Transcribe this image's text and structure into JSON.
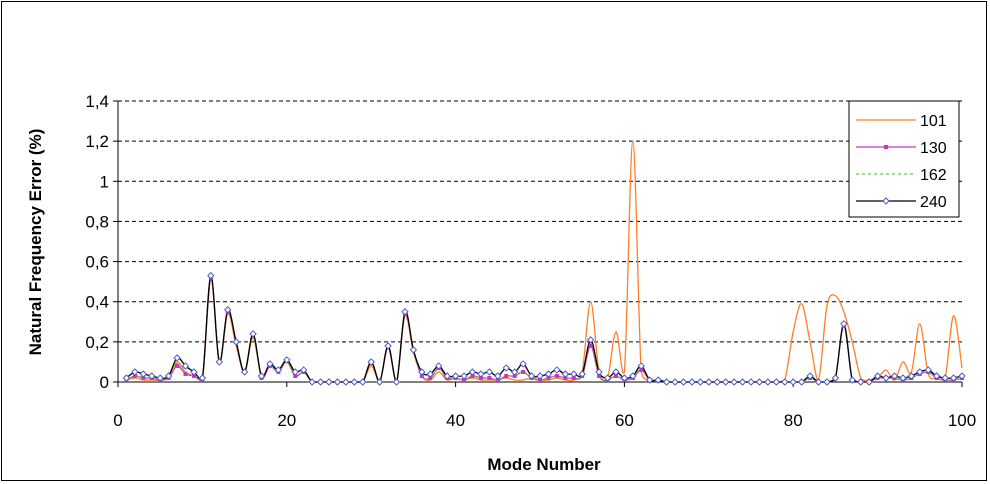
{
  "chart_data": {
    "type": "line",
    "title": "",
    "xlabel": "Mode Number",
    "ylabel": "Natural Frequency Error (%)",
    "xlim": [
      0,
      100
    ],
    "ylim": [
      0,
      1.4
    ],
    "x_ticks": [
      {
        "value": 0,
        "label": "0"
      },
      {
        "value": 20,
        "label": "20"
      },
      {
        "value": 40,
        "label": "40"
      },
      {
        "value": 60,
        "label": "60"
      },
      {
        "value": 80,
        "label": "80"
      },
      {
        "value": 100,
        "label": "100"
      }
    ],
    "y_ticks": [
      {
        "value": 0,
        "label": "0"
      },
      {
        "value": 0.2,
        "label": "0,2"
      },
      {
        "value": 0.4,
        "label": "0,4"
      },
      {
        "value": 0.6,
        "label": "0,6"
      },
      {
        "value": 0.8,
        "label": "0,8"
      },
      {
        "value": 1.0,
        "label": "1"
      },
      {
        "value": 1.2,
        "label": "1,2"
      },
      {
        "value": 1.4,
        "label": "1,4"
      }
    ],
    "grid": "horizontal-dashed",
    "legend_position": "top-right",
    "x": [
      1,
      2,
      3,
      4,
      5,
      6,
      7,
      8,
      9,
      10,
      11,
      12,
      13,
      14,
      15,
      16,
      17,
      18,
      19,
      20,
      21,
      22,
      23,
      24,
      25,
      26,
      27,
      28,
      29,
      30,
      31,
      32,
      33,
      34,
      35,
      36,
      37,
      38,
      39,
      40,
      41,
      42,
      43,
      44,
      45,
      46,
      47,
      48,
      49,
      50,
      51,
      52,
      53,
      54,
      55,
      56,
      57,
      58,
      59,
      60,
      61,
      62,
      63,
      64,
      65,
      66,
      67,
      68,
      69,
      70,
      71,
      72,
      73,
      74,
      75,
      76,
      77,
      78,
      79,
      80,
      81,
      82,
      83,
      84,
      85,
      86,
      87,
      88,
      89,
      90,
      91,
      92,
      93,
      94,
      95,
      96,
      97,
      98,
      99,
      100
    ],
    "series": [
      {
        "name": "101",
        "color": "#ff7f27",
        "marker": "none",
        "dash": "solid",
        "values": [
          0.01,
          0.02,
          0.01,
          0.01,
          0.01,
          0.03,
          0.1,
          0.05,
          0.03,
          0.01,
          0.52,
          0.1,
          0.34,
          0.18,
          0.05,
          0.22,
          0.03,
          0.09,
          0.05,
          0.1,
          0.03,
          0.05,
          0.0,
          0.0,
          0.0,
          0.0,
          0.0,
          0.0,
          0.0,
          0.08,
          0.0,
          0.17,
          0.0,
          0.33,
          0.15,
          0.03,
          0.01,
          0.05,
          0.01,
          0.02,
          0.01,
          0.02,
          0.01,
          0.01,
          0.01,
          0.02,
          0.01,
          0.01,
          0.02,
          0.01,
          0.01,
          0.02,
          0.01,
          0.01,
          0.05,
          0.4,
          0.05,
          0.02,
          0.25,
          0.05,
          1.2,
          0.05,
          0.01,
          0.01,
          0.0,
          0.0,
          0.0,
          0.0,
          0.0,
          0.0,
          0.0,
          0.0,
          0.0,
          0.0,
          0.0,
          0.0,
          0.0,
          0.0,
          0.01,
          0.25,
          0.39,
          0.2,
          0.01,
          0.38,
          0.43,
          0.35,
          0.2,
          0.02,
          0.01,
          0.02,
          0.06,
          0.01,
          0.1,
          0.05,
          0.29,
          0.04,
          0.02,
          0.02,
          0.33,
          0.07
        ]
      },
      {
        "name": "130",
        "color": "#cc33cc",
        "marker": "square",
        "dash": "solid",
        "values": [
          0.01,
          0.03,
          0.02,
          0.02,
          0.01,
          0.02,
          0.08,
          0.04,
          0.03,
          0.01,
          0.52,
          0.1,
          0.35,
          0.2,
          0.05,
          0.24,
          0.02,
          0.08,
          0.05,
          0.11,
          0.03,
          0.05,
          0.0,
          0.0,
          0.0,
          0.0,
          0.0,
          0.0,
          0.0,
          0.1,
          0.0,
          0.18,
          0.0,
          0.34,
          0.16,
          0.03,
          0.02,
          0.07,
          0.02,
          0.02,
          0.01,
          0.03,
          0.02,
          0.02,
          0.01,
          0.03,
          0.03,
          0.05,
          0.02,
          0.01,
          0.02,
          0.03,
          0.02,
          0.02,
          0.03,
          0.18,
          0.03,
          0.01,
          0.03,
          0.01,
          0.02,
          0.06,
          0.01,
          0.01,
          0.0,
          0.0,
          0.0,
          0.0,
          0.0,
          0.0,
          0.0,
          0.0,
          0.0,
          0.0,
          0.0,
          0.0,
          0.0,
          0.0,
          0.0,
          0.0,
          0.0,
          0.02,
          0.0,
          0.0,
          0.02,
          0.28,
          0.01,
          0.0,
          0.0,
          0.02,
          0.02,
          0.02,
          0.01,
          0.02,
          0.04,
          0.05,
          0.02,
          0.01,
          0.01,
          0.02
        ]
      },
      {
        "name": "162",
        "color": "#66cc44",
        "marker": "none",
        "dash": "dotted",
        "values": [
          0.01,
          0.03,
          0.02,
          0.02,
          0.01,
          0.02,
          0.09,
          0.04,
          0.03,
          0.01,
          0.53,
          0.1,
          0.35,
          0.2,
          0.05,
          0.23,
          0.02,
          0.08,
          0.05,
          0.1,
          0.03,
          0.05,
          0.0,
          0.0,
          0.0,
          0.0,
          0.0,
          0.0,
          0.0,
          0.1,
          0.0,
          0.18,
          0.0,
          0.35,
          0.16,
          0.03,
          0.02,
          0.07,
          0.02,
          0.02,
          0.01,
          0.03,
          0.02,
          0.02,
          0.01,
          0.03,
          0.03,
          0.05,
          0.02,
          0.01,
          0.02,
          0.03,
          0.02,
          0.02,
          0.03,
          0.2,
          0.03,
          0.01,
          0.03,
          0.01,
          0.02,
          0.07,
          0.01,
          0.01,
          0.0,
          0.0,
          0.0,
          0.0,
          0.0,
          0.0,
          0.0,
          0.0,
          0.0,
          0.0,
          0.0,
          0.0,
          0.0,
          0.0,
          0.0,
          0.0,
          0.0,
          0.02,
          0.0,
          0.0,
          0.02,
          0.29,
          0.01,
          0.0,
          0.0,
          0.03,
          0.02,
          0.02,
          0.01,
          0.02,
          0.04,
          0.05,
          0.02,
          0.01,
          0.01,
          0.02
        ]
      },
      {
        "name": "240",
        "color": "#000000",
        "marker": "diamond",
        "marker_color": "#4a5acb",
        "dash": "solid",
        "values": [
          0.02,
          0.05,
          0.04,
          0.03,
          0.02,
          0.03,
          0.12,
          0.08,
          0.05,
          0.02,
          0.53,
          0.1,
          0.36,
          0.2,
          0.05,
          0.24,
          0.03,
          0.09,
          0.06,
          0.11,
          0.05,
          0.06,
          0.0,
          0.0,
          0.0,
          0.0,
          0.0,
          0.0,
          0.0,
          0.1,
          0.0,
          0.18,
          0.0,
          0.35,
          0.16,
          0.05,
          0.04,
          0.08,
          0.03,
          0.03,
          0.03,
          0.05,
          0.04,
          0.05,
          0.03,
          0.07,
          0.05,
          0.09,
          0.03,
          0.03,
          0.04,
          0.06,
          0.04,
          0.04,
          0.04,
          0.21,
          0.05,
          0.02,
          0.05,
          0.02,
          0.03,
          0.08,
          0.01,
          0.01,
          0.0,
          0.0,
          0.0,
          0.0,
          0.0,
          0.0,
          0.0,
          0.0,
          0.0,
          0.0,
          0.0,
          0.0,
          0.0,
          0.0,
          0.0,
          0.0,
          0.0,
          0.03,
          0.0,
          0.0,
          0.02,
          0.29,
          0.01,
          0.0,
          0.0,
          0.03,
          0.02,
          0.03,
          0.02,
          0.03,
          0.05,
          0.06,
          0.03,
          0.02,
          0.02,
          0.03
        ]
      }
    ]
  }
}
